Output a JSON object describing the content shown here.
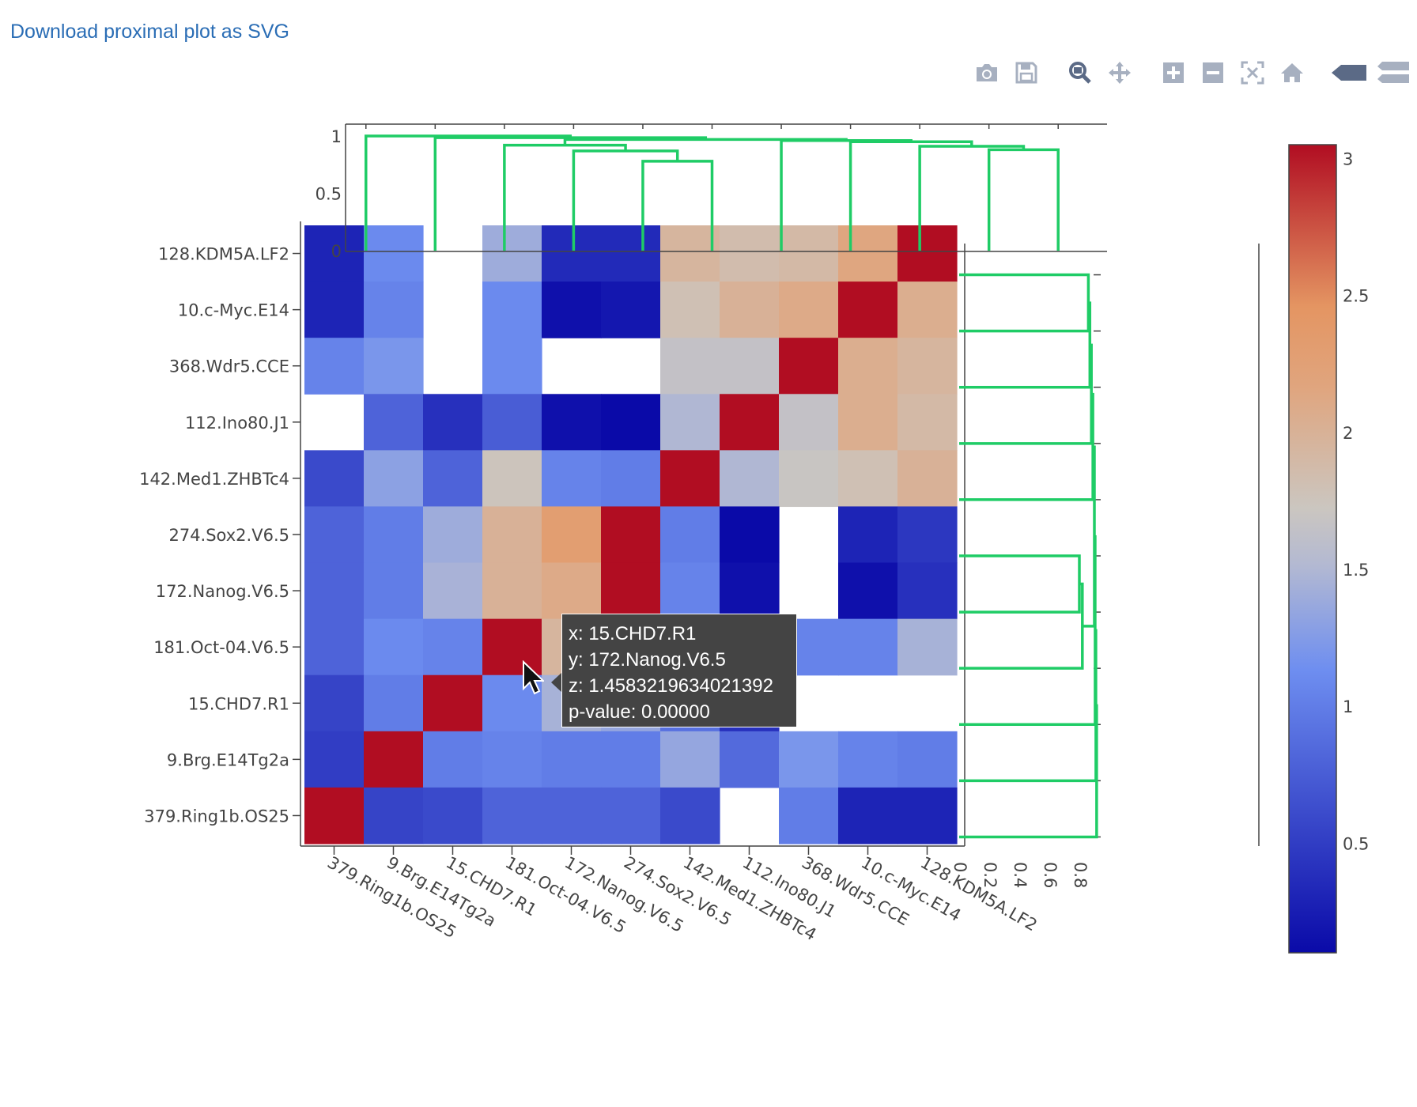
{
  "link": {
    "label": "Download proximal plot as SVG"
  },
  "modebar": {
    "buttons": [
      {
        "name": "camera-icon",
        "title": "Download plot as png"
      },
      {
        "name": "save-icon",
        "title": "Save"
      },
      {
        "name": "zoom-icon",
        "title": "Zoom"
      },
      {
        "name": "pan-icon",
        "title": "Pan"
      },
      {
        "name": "zoom-in-icon",
        "title": "Zoom in"
      },
      {
        "name": "zoom-out-icon",
        "title": "Zoom out"
      },
      {
        "name": "autoscale-icon",
        "title": "Autoscale"
      },
      {
        "name": "home-icon",
        "title": "Reset axes"
      },
      {
        "name": "hover-closest-icon",
        "title": "Show closest data on hover"
      },
      {
        "name": "hover-compare-icon",
        "title": "Compare data on hover"
      }
    ]
  },
  "colors": {
    "dendrogram": "#1fcc66",
    "axis": "#444444",
    "link": "#2a6db5"
  },
  "chart_data": {
    "type": "heatmap",
    "labels": [
      "379.Ring1b.OS25",
      "9.Brg.E14Tg2a",
      "15.CHD7.R1",
      "181.Oct-04.V6.5",
      "172.Nanog.V6.5",
      "274.Sox2.V6.5",
      "142.Med1.ZHBTc4",
      "112.Ino80.J1",
      "368.Wdr5.CCE",
      "10.c-Myc.E14",
      "128.KDM5A.LF2"
    ],
    "x": [
      "379.Ring1b.OS25",
      "9.Brg.E14Tg2a",
      "15.CHD7.R1",
      "181.Oct-04.V6.5",
      "172.Nanog.V6.5",
      "274.Sox2.V6.5",
      "142.Med1.ZHBTc4",
      "112.Ino80.J1",
      "368.Wdr5.CCE",
      "10.c-Myc.E14",
      "128.KDM5A.LF2"
    ],
    "y": [
      "128.KDM5A.LF2",
      "10.c-Myc.E14",
      "368.Wdr5.CCE",
      "112.Ino80.J1",
      "142.Med1.ZHBTc4",
      "274.Sox2.V6.5",
      "172.Nanog.V6.5",
      "181.Oct-04.V6.5",
      "15.CHD7.R1",
      "9.Brg.E14Tg2a",
      "379.Ring1b.OS25"
    ],
    "z": [
      [
        0.3,
        1.1,
        null,
        1.4,
        0.35,
        0.35,
        1.95,
        1.85,
        1.9,
        2.15,
        3.05
      ],
      [
        0.3,
        1.05,
        null,
        1.1,
        0.15,
        0.2,
        1.8,
        2.0,
        2.1,
        3.05,
        2.05
      ],
      [
        1.05,
        1.2,
        null,
        1.1,
        null,
        null,
        1.65,
        1.65,
        3.05,
        2.05,
        1.95
      ],
      [
        null,
        0.8,
        0.4,
        0.75,
        0.15,
        0.1,
        1.5,
        3.05,
        1.65,
        2.05,
        1.9
      ],
      [
        0.6,
        1.3,
        0.8,
        1.75,
        1.05,
        1.0,
        3.05,
        1.5,
        1.7,
        1.8,
        2.0
      ],
      [
        0.8,
        1.0,
        1.4,
        2.0,
        2.3,
        3.05,
        1.0,
        0.1,
        null,
        0.3,
        0.45
      ],
      [
        0.8,
        1.0,
        1.458,
        2.0,
        2.1,
        3.05,
        1.05,
        0.15,
        null,
        0.15,
        0.4
      ],
      [
        0.8,
        1.1,
        1.05,
        3.05,
        1.95,
        2.05,
        1.75,
        0.7,
        1.05,
        1.05,
        1.45
      ],
      [
        0.55,
        1.0,
        3.05,
        1.1,
        1.45,
        1.35,
        0.9,
        0.4,
        null,
        null,
        null
      ],
      [
        0.5,
        3.05,
        1.0,
        1.05,
        1.0,
        1.0,
        1.35,
        0.85,
        1.2,
        1.05,
        1.0
      ],
      [
        3.05,
        0.55,
        0.6,
        0.8,
        0.8,
        0.8,
        0.6,
        null,
        1.0,
        0.3,
        0.3
      ]
    ],
    "zlim": [
      0.1,
      3.05
    ],
    "colorscale": [
      [
        0,
        "#0a0aa8"
      ],
      [
        0.35,
        "#6e8ef0"
      ],
      [
        0.48,
        "#b3b9d2"
      ],
      [
        0.55,
        "#cbc6c0"
      ],
      [
        0.7,
        "#e0a57e"
      ],
      [
        0.8,
        "#e49562"
      ],
      [
        1,
        "#b10d22"
      ]
    ],
    "colorbar": {
      "ticks": [
        "0.5",
        "1",
        "1.5",
        "2",
        "2.5",
        "3"
      ],
      "tick_values": [
        0.5,
        1,
        1.5,
        2,
        2.5,
        3
      ]
    },
    "top_dendrogram": {
      "ticks": [
        "0",
        "0.5",
        "1"
      ],
      "tick_values": [
        0,
        0.5,
        1
      ],
      "range": [
        0,
        1.05
      ]
    },
    "right_dendrogram": {
      "ticks": [
        "0",
        "0.2",
        "0.4",
        "0.6",
        "0.8"
      ],
      "tick_values": [
        0,
        0.2,
        0.4,
        0.6,
        0.8
      ],
      "range": [
        0,
        1.0
      ]
    },
    "grid": false
  },
  "tooltip": {
    "x": "x: 15.CHD7.R1",
    "y": "y: 172.Nanog.V6.5",
    "z": "z: 1.4583219634021392",
    "p": "p-value: 0.00000"
  }
}
